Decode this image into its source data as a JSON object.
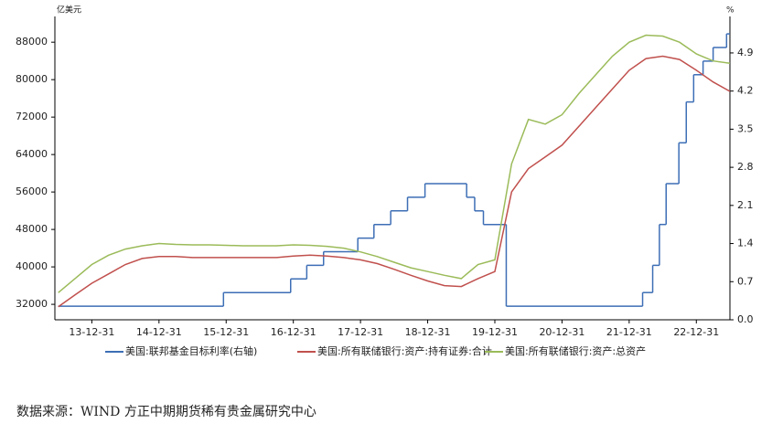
{
  "chart_data": {
    "type": "line",
    "ylabel": "亿美元",
    "y2label": "%",
    "source": "数据来源：WIND 方正中期期货稀有贵金属研究中心",
    "xlim": [
      2013.45,
      2023.5
    ],
    "xticks": [
      {
        "value": 2014.0,
        "label": "13-12-31"
      },
      {
        "value": 2015.0,
        "label": "14-12-31"
      },
      {
        "value": 2016.0,
        "label": "15-12-31"
      },
      {
        "value": 2017.0,
        "label": "16-12-31"
      },
      {
        "value": 2018.0,
        "label": "17-12-31"
      },
      {
        "value": 2019.0,
        "label": "18-12-31"
      },
      {
        "value": 2020.0,
        "label": "19-12-31"
      },
      {
        "value": 2021.0,
        "label": "20-12-31"
      },
      {
        "value": 2022.0,
        "label": "21-12-31"
      },
      {
        "value": 2023.0,
        "label": "22-12-31"
      }
    ],
    "ylim": [
      28700,
      93500
    ],
    "yticks": [
      32000,
      40000,
      48000,
      56000,
      64000,
      72000,
      80000,
      88000
    ],
    "y2lim": [
      0,
      5.57
    ],
    "y2ticks": [
      {
        "value": 0,
        "label": "0.0"
      },
      0.7,
      1.4,
      2.1,
      2.8,
      3.5,
      4.2,
      4.9
    ],
    "series": [
      {
        "name": "美国:联邦基金目标利率(右轴)",
        "color": "#3d6eb5",
        "axis": "y2",
        "step": true,
        "x": [
          2013.5,
          2015.96,
          2016.96,
          2017.2,
          2017.45,
          2017.96,
          2018.2,
          2018.45,
          2018.7,
          2018.96,
          2019.58,
          2019.7,
          2019.83,
          2020.17,
          2022.2,
          2022.35,
          2022.45,
          2022.55,
          2022.74,
          2022.85,
          2022.96,
          2023.1,
          2023.25,
          2023.45,
          2023.5
        ],
        "values": [
          0.25,
          0.5,
          0.75,
          1.0,
          1.25,
          1.5,
          1.75,
          2.0,
          2.25,
          2.5,
          2.25,
          2.0,
          1.75,
          0.25,
          0.5,
          1.0,
          1.75,
          2.5,
          3.25,
          4.0,
          4.5,
          4.75,
          5.0,
          5.25,
          5.25
        ]
      },
      {
        "name": "美国:所有联储银行:资产:持有证券:合计",
        "color": "#c0504d",
        "x": [
          2013.5,
          2013.75,
          2014.0,
          2014.25,
          2014.5,
          2014.75,
          2015.0,
          2015.25,
          2015.5,
          2015.75,
          2016.0,
          2016.25,
          2016.5,
          2016.75,
          2017.0,
          2017.25,
          2017.5,
          2017.75,
          2018.0,
          2018.25,
          2018.5,
          2018.75,
          2019.0,
          2019.25,
          2019.5,
          2019.75,
          2020.0,
          2020.25,
          2020.5,
          2020.75,
          2021.0,
          2021.25,
          2021.5,
          2021.75,
          2022.0,
          2022.25,
          2022.5,
          2022.75,
          2023.0,
          2023.25,
          2023.5
        ],
        "values": [
          31500,
          34000,
          36500,
          38500,
          40500,
          41800,
          42200,
          42200,
          42000,
          42000,
          42000,
          42000,
          42000,
          42000,
          42300,
          42500,
          42300,
          42000,
          41500,
          40700,
          39500,
          38200,
          37000,
          36000,
          35800,
          37500,
          39000,
          56000,
          61000,
          63500,
          66000,
          70000,
          74000,
          78000,
          82000,
          84500,
          85000,
          84300,
          82000,
          79500,
          77500
        ]
      },
      {
        "name": "美国:所有联储银行:资产:总资产",
        "color": "#9bbb59",
        "x": [
          2013.5,
          2013.75,
          2014.0,
          2014.25,
          2014.5,
          2014.75,
          2015.0,
          2015.25,
          2015.5,
          2015.75,
          2016.0,
          2016.25,
          2016.5,
          2016.75,
          2017.0,
          2017.25,
          2017.5,
          2017.75,
          2018.0,
          2018.25,
          2018.5,
          2018.75,
          2019.0,
          2019.25,
          2019.5,
          2019.75,
          2020.0,
          2020.25,
          2020.5,
          2020.75,
          2021.0,
          2021.25,
          2021.5,
          2021.75,
          2022.0,
          2022.25,
          2022.5,
          2022.75,
          2023.0,
          2023.25,
          2023.5
        ],
        "values": [
          34500,
          37500,
          40500,
          42500,
          43800,
          44500,
          45000,
          44800,
          44700,
          44700,
          44600,
          44500,
          44500,
          44500,
          44700,
          44600,
          44400,
          44000,
          43200,
          42200,
          41000,
          39800,
          39000,
          38200,
          37500,
          40500,
          41500,
          62000,
          71500,
          70500,
          72500,
          77000,
          81000,
          85000,
          88000,
          89500,
          89300,
          88000,
          85500,
          84000,
          83500
        ]
      }
    ]
  }
}
